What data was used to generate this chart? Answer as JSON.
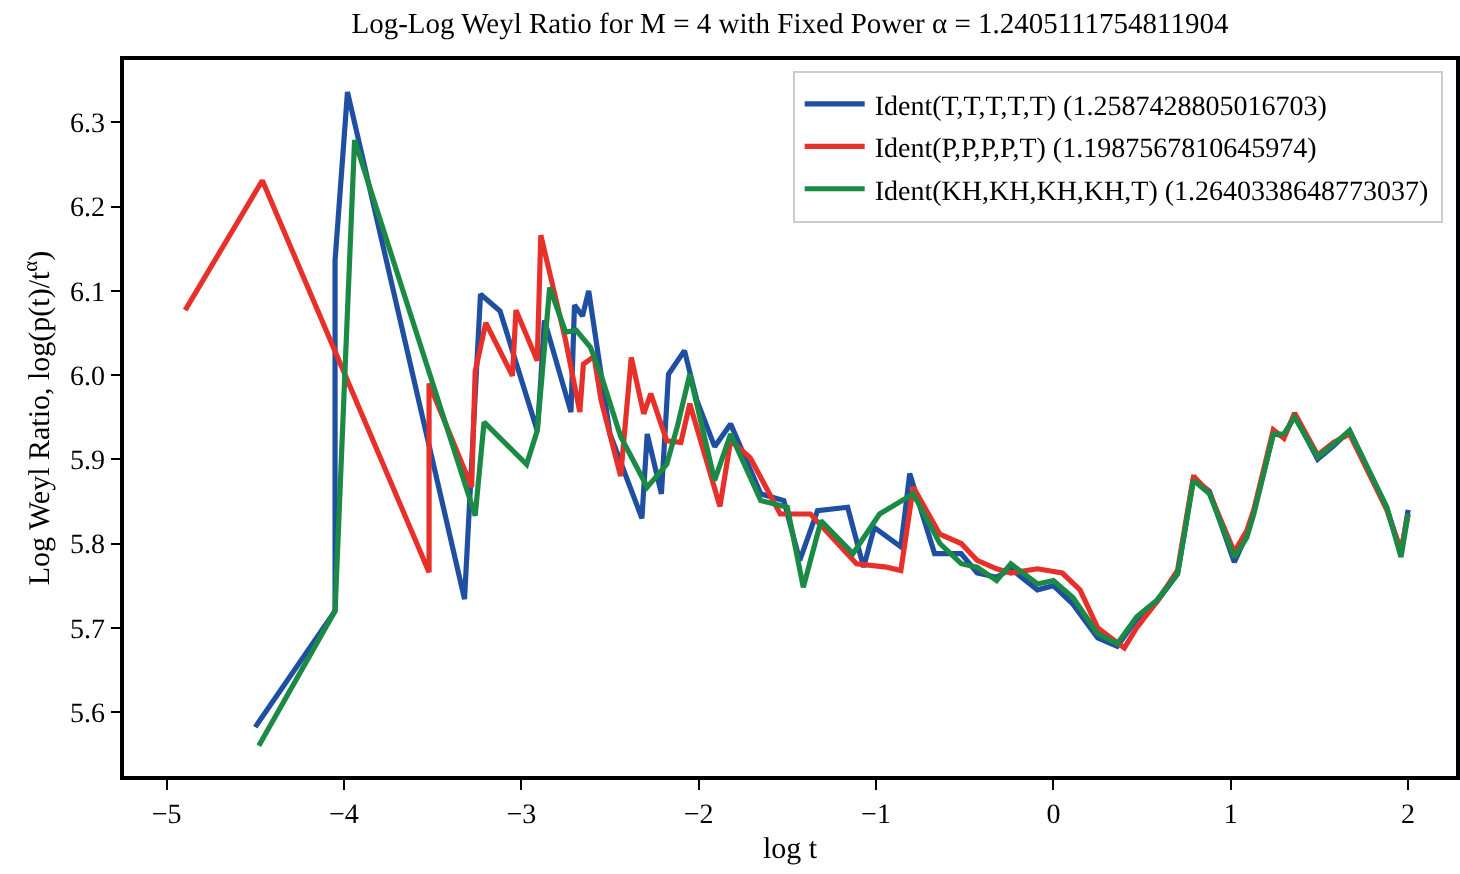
{
  "chart_data": {
    "type": "line",
    "title": "Log-Log Weyl Ratio for M = 4 with Fixed Power α = 1.2405111754811904",
    "xlabel": "log t",
    "ylabel": "Log Weyl Ratio, log(p(t)/t$^{α}$)",
    "xlim": [
      -5.24,
      2.27
    ],
    "xticks": [
      -5,
      -4,
      -3,
      -2,
      -1,
      0,
      1,
      2
    ],
    "ylim": [
      5.524,
      6.374
    ],
    "yticks": [
      5.6,
      5.7,
      5.8,
      5.9,
      {
        "value": 6,
        "label": "6.0"
      },
      6.1,
      6.2,
      6.3
    ],
    "grid": false,
    "legend": "top right",
    "series": [
      {
        "name": "Ident(T,T,T,T,T) (1.2587428805016703)",
        "color": "#1f4fa0",
        "x": [
          -4.5,
          -4.05,
          -4.05,
          -3.98,
          -3.32,
          -3.23,
          -3.12,
          -2.91,
          -2.89,
          -2.87,
          -2.72,
          -2.7,
          -2.655,
          -2.62,
          -2.5,
          -2.32,
          -2.29,
          -2.21,
          -2.17,
          -2.08,
          -2.01,
          -1.91,
          -1.82,
          -1.65,
          -1.52,
          -1.43,
          -1.33,
          -1.16,
          -1.07,
          -1.01,
          -0.86,
          -0.81,
          -0.67,
          -0.52,
          -0.43,
          -0.32,
          -0.24,
          -0.09,
          0.0,
          0.11,
          0.25,
          0.36,
          0.47,
          0.58,
          0.7,
          0.79,
          0.88,
          1.02,
          1.09,
          1.13,
          1.24,
          1.3,
          1.36,
          1.49,
          1.58,
          1.67,
          1.88,
          1.96,
          2.0
        ],
        "values": [
          5.582,
          5.72,
          6.136,
          6.336,
          5.734,
          6.096,
          6.076,
          5.934,
          5.994,
          6.065,
          5.956,
          6.083,
          6.07,
          6.1,
          5.93,
          5.83,
          5.93,
          5.859,
          6.001,
          6.029,
          5.97,
          5.915,
          5.942,
          5.859,
          5.851,
          5.78,
          5.839,
          5.843,
          5.772,
          5.819,
          5.796,
          5.883,
          5.788,
          5.788,
          5.765,
          5.76,
          5.77,
          5.745,
          5.75,
          5.728,
          5.688,
          5.678,
          5.71,
          5.73,
          5.764,
          5.877,
          5.862,
          5.778,
          5.81,
          5.838,
          5.93,
          5.928,
          5.952,
          5.9,
          5.916,
          5.934,
          5.842,
          5.788,
          5.84
        ]
      },
      {
        "name": "Ident(P,P,P,P,T) (1.1987567810645974)",
        "color": "#e8302b",
        "x": [
          -4.895,
          -4.46,
          -3.52,
          -3.52,
          -3.28,
          -3.26,
          -3.2,
          -3.05,
          -3.03,
          -2.91,
          -2.89,
          -2.75,
          -2.67,
          -2.65,
          -2.59,
          -2.55,
          -2.44,
          -2.38,
          -2.31,
          -2.27,
          -2.18,
          -2.1,
          -2.05,
          -1.88,
          -1.82,
          -1.71,
          -1.54,
          -1.37,
          -1.11,
          -0.94,
          -0.86,
          -0.79,
          -0.64,
          -0.52,
          -0.43,
          -0.32,
          -0.24,
          -0.09,
          0.05,
          0.15,
          0.25,
          0.4,
          0.47,
          0.58,
          0.7,
          0.79,
          0.88,
          1.02,
          1.09,
          1.13,
          1.24,
          1.3,
          1.36,
          1.49,
          1.58,
          1.67,
          1.88,
          1.96,
          2.0
        ],
        "values": [
          6.077,
          6.231,
          5.766,
          5.99,
          5.867,
          6.004,
          6.062,
          5.999,
          6.077,
          6.017,
          6.166,
          6.041,
          5.956,
          6.013,
          6.022,
          5.97,
          5.88,
          6.021,
          5.954,
          5.978,
          5.922,
          5.92,
          5.966,
          5.844,
          5.922,
          5.902,
          5.835,
          5.835,
          5.776,
          5.772,
          5.768,
          5.867,
          5.811,
          5.8,
          5.78,
          5.77,
          5.765,
          5.77,
          5.765,
          5.745,
          5.7,
          5.676,
          5.7,
          5.73,
          5.768,
          5.88,
          5.86,
          5.79,
          5.815,
          5.84,
          5.935,
          5.925,
          5.955,
          5.905,
          5.92,
          5.93,
          5.84,
          5.792,
          5.835
        ]
      },
      {
        "name": "Ident(KH,KH,KH,KH,T) (1.2640338648773037)",
        "color": "#1b8a45",
        "x": [
          -4.48,
          -4.05,
          -3.94,
          -3.26,
          -3.21,
          -2.97,
          -2.91,
          -2.84,
          -2.75,
          -2.69,
          -2.61,
          -2.55,
          -2.44,
          -2.29,
          -2.18,
          -2.12,
          -2.05,
          -1.91,
          -1.82,
          -1.65,
          -1.5,
          -1.41,
          -1.31,
          -1.13,
          -0.98,
          -0.79,
          -0.64,
          -0.52,
          -0.43,
          -0.32,
          -0.24,
          -0.09,
          0.0,
          0.11,
          0.25,
          0.36,
          0.47,
          0.58,
          0.7,
          0.79,
          0.88,
          1.02,
          1.09,
          1.13,
          1.24,
          1.3,
          1.36,
          1.49,
          1.58,
          1.67,
          1.88,
          1.96,
          2.0
        ],
        "values": [
          5.56,
          5.72,
          6.279,
          5.833,
          5.944,
          5.894,
          5.934,
          6.104,
          6.051,
          6.053,
          6.033,
          6.0,
          5.927,
          5.867,
          5.894,
          5.939,
          6.001,
          5.875,
          5.93,
          5.851,
          5.843,
          5.748,
          5.827,
          5.788,
          5.835,
          5.859,
          5.8,
          5.776,
          5.772,
          5.756,
          5.776,
          5.752,
          5.756,
          5.736,
          5.693,
          5.681,
          5.713,
          5.732,
          5.764,
          5.875,
          5.859,
          5.784,
          5.807,
          5.835,
          5.93,
          5.93,
          5.95,
          5.903,
          5.918,
          5.934,
          5.843,
          5.784,
          5.835
        ]
      }
    ]
  }
}
